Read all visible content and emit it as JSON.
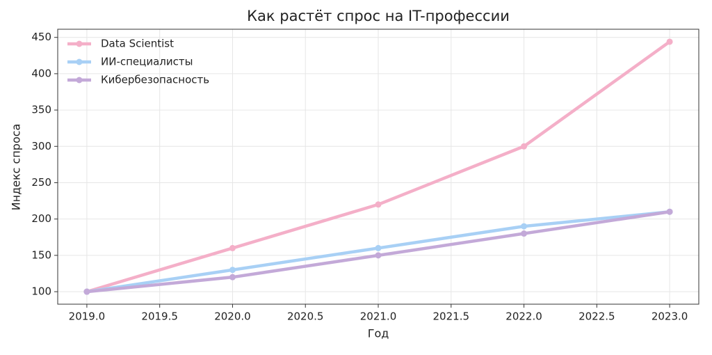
{
  "chart_data": {
    "type": "line",
    "title": "Как растёт спрос на IT-профессии",
    "x_label": "Год",
    "y_label": "Индекс спроса",
    "x": [
      2019,
      2020,
      2021,
      2022,
      2023
    ],
    "series": [
      {
        "name": "Data Scientist",
        "color": "#f4afc8",
        "values": [
          100,
          160,
          220,
          300,
          444
        ]
      },
      {
        "name": "ИИ-специалисты",
        "color": "#a8d0f5",
        "values": [
          100,
          130,
          160,
          190,
          210
        ]
      },
      {
        "name": "Кибербезопасность",
        "color": "#c3a9d8",
        "values": [
          100,
          120,
          150,
          180,
          210
        ]
      }
    ],
    "xlim": [
      2018.8,
      2023.2
    ],
    "xticks": [
      {
        "value": 2019,
        "label": "2019.0"
      },
      2019.5,
      {
        "value": 2020,
        "label": "2020.0"
      },
      2020.5,
      {
        "value": 2021,
        "label": "2021.0"
      },
      2021.5,
      {
        "value": 2022,
        "label": "2022.0"
      },
      2022.5,
      {
        "value": 2023,
        "label": "2023.0"
      }
    ],
    "ylim": [
      82.8,
      461.2
    ],
    "yticks": [
      100,
      150,
      200,
      250,
      300,
      350,
      400,
      450
    ],
    "grid": true,
    "legend": "upper-left"
  }
}
